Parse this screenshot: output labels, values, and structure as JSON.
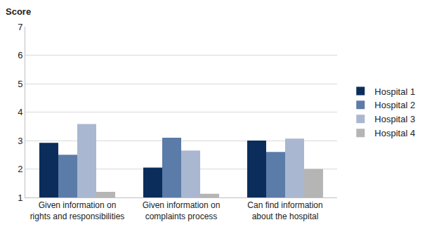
{
  "chart_data": {
    "type": "bar",
    "y_label": "Score",
    "categories": [
      "Given information on rights and responsibilities",
      "Given information on complaints process",
      "Can find information about the hospital"
    ],
    "series": [
      {
        "name": "Hospital 1",
        "color": "#0b2d5b",
        "values": [
          2.92,
          2.05,
          3.0
        ]
      },
      {
        "name": "Hospital 2",
        "color": "#5b7ba8",
        "values": [
          2.5,
          3.1,
          2.6
        ]
      },
      {
        "name": "Hospital 3",
        "color": "#a9b7d1",
        "values": [
          3.58,
          2.65,
          3.07
        ]
      },
      {
        "name": "Hospital 4",
        "color": "#b5b5b5",
        "values": [
          1.2,
          1.13,
          2.0
        ]
      }
    ],
    "ylim": [
      1,
      7
    ],
    "yticks": [
      1,
      2,
      3,
      4,
      5,
      6,
      7
    ],
    "grid": true,
    "legend": "right"
  }
}
